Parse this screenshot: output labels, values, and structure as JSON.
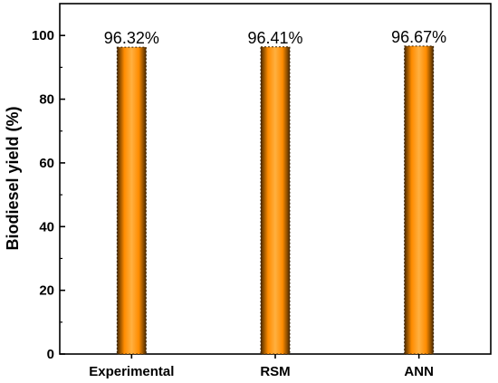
{
  "chart_data": {
    "type": "bar",
    "categories": [
      "Experimental",
      "RSM",
      "ANN"
    ],
    "values": [
      96.32,
      96.41,
      96.67
    ],
    "data_labels": [
      "96.32%",
      "96.41%",
      "96.67%"
    ],
    "title": "",
    "xlabel": "",
    "ylabel": "Biodiesel yield (%)",
    "ylim": [
      0,
      110
    ],
    "yticks": [
      0,
      20,
      40,
      60,
      80,
      100
    ],
    "ytick_labels": [
      "0",
      "20",
      "40",
      "60",
      "80",
      "100"
    ],
    "grid": false,
    "legend": "none",
    "bar_colors": {
      "edge": "#4a2a00",
      "center": "#ff8c00",
      "highlight": "#ffb040"
    }
  }
}
